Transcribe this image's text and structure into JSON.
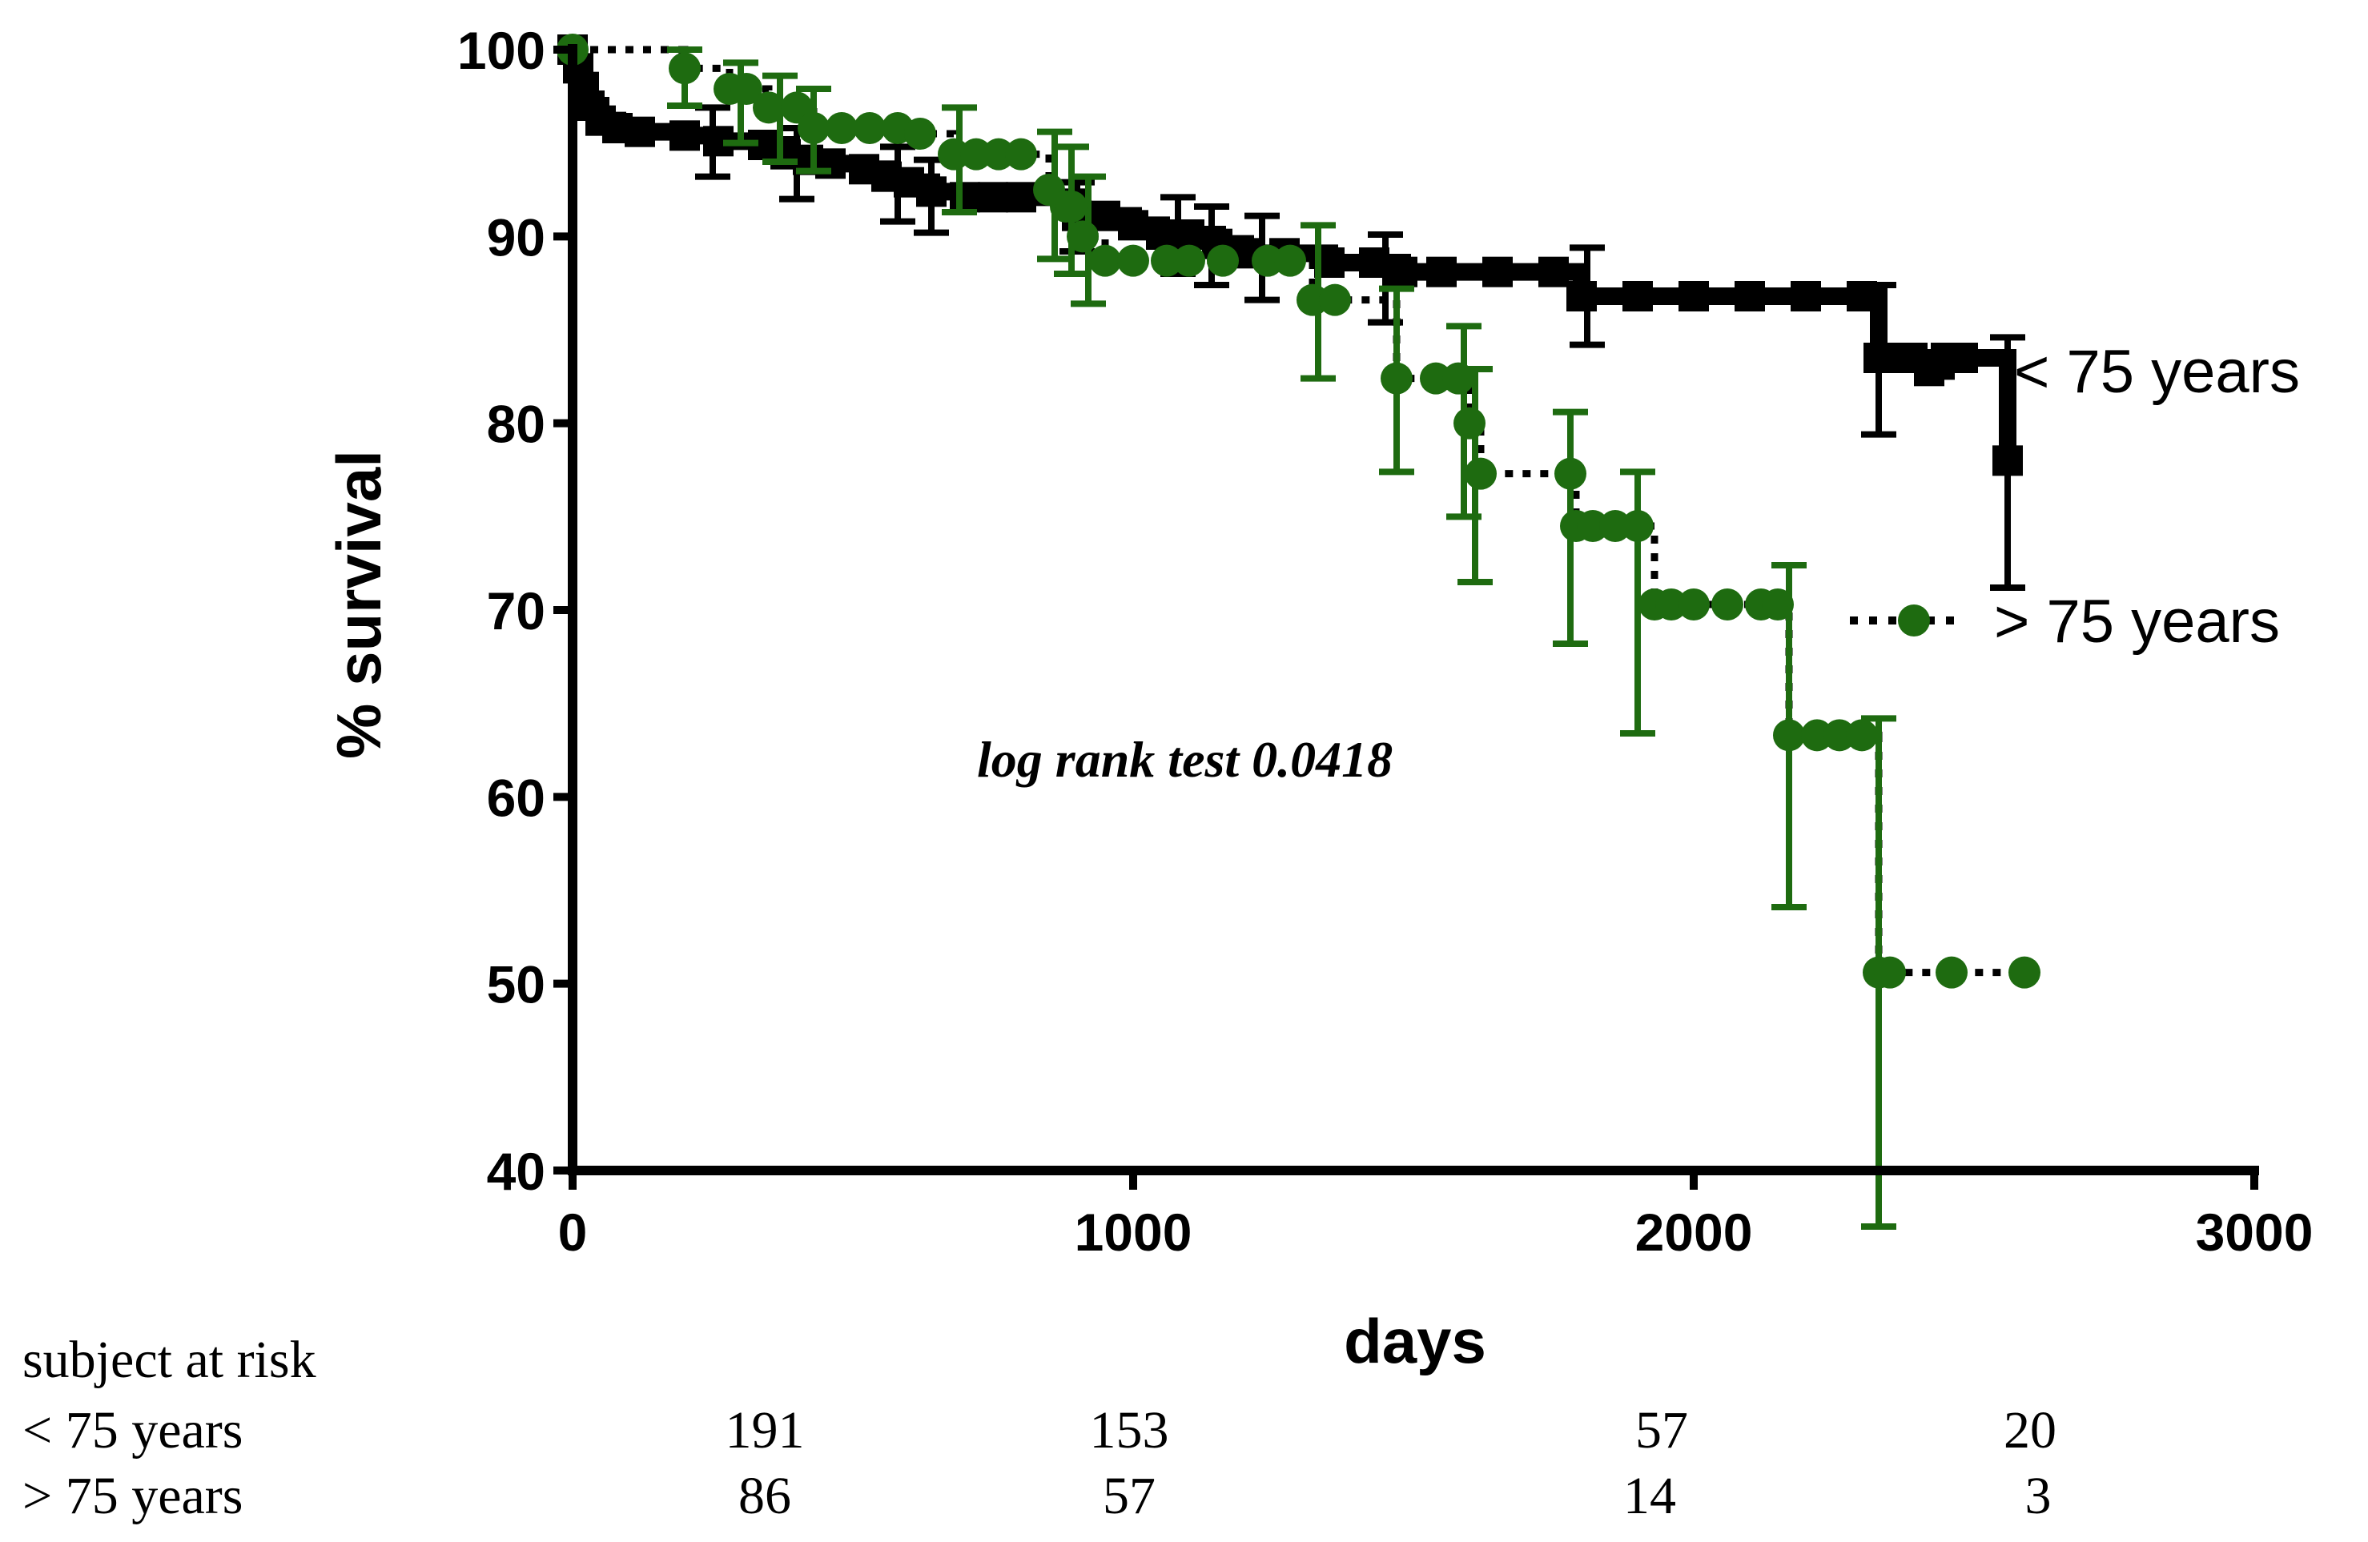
{
  "chart_data": {
    "type": "line",
    "subtype": "kaplan-meier",
    "title": "",
    "xlabel": "days",
    "ylabel": "% survival",
    "xlim": [
      0,
      3000
    ],
    "ylim": [
      40,
      100
    ],
    "x_ticks": [
      "0",
      "1000",
      "2000",
      "3000"
    ],
    "x_tick_values": [
      0,
      1000,
      2000,
      3000
    ],
    "y_ticks": [
      "40",
      "50",
      "60",
      "70",
      "80",
      "90",
      "100"
    ],
    "y_tick_values": [
      40,
      50,
      60,
      70,
      80,
      90,
      100
    ],
    "annotation": "log rank test 0.0418",
    "series": [
      {
        "name": "< 75 years",
        "label": "< 75 years",
        "color": "#000000",
        "marker": "square",
        "line_style": "solid",
        "x": [
          0,
          10,
          20,
          30,
          50,
          80,
          120,
          200,
          260,
          340,
          380,
          420,
          460,
          520,
          560,
          600,
          640,
          700,
          750,
          800,
          900,
          950,
          1000,
          1050,
          1100,
          1150,
          1200,
          1270,
          1350,
          1430,
          1480,
          1550,
          1650,
          1750,
          1800,
          1900,
          2000,
          2100,
          2200,
          2300,
          2330,
          2360,
          2390,
          2420,
          2450,
          2480,
          2560
        ],
        "y": [
          100,
          99,
          98,
          97,
          96.2,
          95.8,
          95.6,
          95.4,
          95.1,
          94.9,
          94.4,
          94.1,
          93.9,
          93.6,
          93.2,
          92.9,
          92.4,
          92.1,
          92.1,
          92.1,
          91.1,
          91.1,
          90.6,
          90.1,
          90.1,
          89.6,
          89.1,
          89.1,
          88.6,
          88.6,
          88.1,
          88.1,
          88.1,
          88.1,
          86.8,
          86.8,
          86.8,
          86.8,
          86.8,
          86.8,
          83.5,
          83.5,
          83.5,
          82.8,
          83.5,
          83.5,
          78.0
        ],
        "error_bars": [
          {
            "x": 250,
            "low": 93.2,
            "high": 96.9
          },
          {
            "x": 400,
            "low": 92.0,
            "high": 95.8
          },
          {
            "x": 580,
            "low": 90.8,
            "high": 94.8
          },
          {
            "x": 640,
            "low": 90.2,
            "high": 94.1
          },
          {
            "x": 900,
            "low": 89.2,
            "high": 92.9
          },
          {
            "x": 1080,
            "low": 88.0,
            "high": 92.1
          },
          {
            "x": 1140,
            "low": 87.4,
            "high": 91.6
          },
          {
            "x": 1230,
            "low": 86.6,
            "high": 91.1
          },
          {
            "x": 1450,
            "low": 85.4,
            "high": 90.1
          },
          {
            "x": 1810,
            "low": 84.2,
            "high": 89.4
          },
          {
            "x": 2330,
            "low": 79.4,
            "high": 87.4
          },
          {
            "x": 2560,
            "low": 71.2,
            "high": 84.6
          }
        ]
      },
      {
        "name": "> 75 years",
        "label": "> 75 years",
        "color": "#1e6b10",
        "marker": "circle",
        "line_style": "dotted",
        "x": [
          0,
          200,
          280,
          310,
          350,
          400,
          430,
          480,
          530,
          580,
          620,
          680,
          720,
          760,
          800,
          850,
          880,
          890,
          910,
          950,
          1000,
          1060,
          1100,
          1160,
          1240,
          1280,
          1320,
          1360,
          1470,
          1540,
          1580,
          1600,
          1620,
          1780,
          1790,
          1820,
          1860,
          1900,
          1930,
          1960,
          2000,
          2060,
          2120,
          2150,
          2170,
          2220,
          2260,
          2300,
          2330,
          2350,
          2460,
          2590
        ],
        "y": [
          100,
          99.0,
          97.9,
          97.9,
          96.9,
          96.9,
          95.8,
          95.8,
          95.8,
          95.8,
          95.5,
          94.4,
          94.4,
          94.4,
          94.4,
          92.5,
          91.6,
          91.6,
          90.0,
          88.7,
          88.7,
          88.7,
          88.7,
          88.7,
          88.7,
          88.7,
          86.6,
          86.6,
          82.4,
          82.4,
          82.4,
          80.0,
          77.3,
          77.3,
          74.5,
          74.5,
          74.5,
          74.5,
          70.3,
          70.3,
          70.3,
          70.3,
          70.3,
          70.3,
          63.3,
          63.3,
          63.3,
          63.3,
          50.6,
          50.6,
          50.6,
          50.6
        ],
        "error_bars": [
          {
            "x": 200,
            "low": 97.0,
            "high": 100
          },
          {
            "x": 300,
            "low": 95.0,
            "high": 99.3
          },
          {
            "x": 370,
            "low": 94.0,
            "high": 98.6
          },
          {
            "x": 430,
            "low": 93.5,
            "high": 97.9
          },
          {
            "x": 690,
            "low": 91.3,
            "high": 96.9
          },
          {
            "x": 860,
            "low": 88.8,
            "high": 95.6
          },
          {
            "x": 890,
            "low": 88.0,
            "high": 94.8
          },
          {
            "x": 920,
            "low": 86.4,
            "high": 93.2
          },
          {
            "x": 1330,
            "low": 82.4,
            "high": 90.6
          },
          {
            "x": 1470,
            "low": 77.4,
            "high": 87.2
          },
          {
            "x": 1590,
            "low": 75.0,
            "high": 85.2
          },
          {
            "x": 1610,
            "low": 71.5,
            "high": 82.9
          },
          {
            "x": 1780,
            "low": 68.2,
            "high": 80.6
          },
          {
            "x": 1900,
            "low": 63.4,
            "high": 77.4
          },
          {
            "x": 2170,
            "low": 54.1,
            "high": 72.4
          },
          {
            "x": 2330,
            "low": 37.0,
            "high": 64.2
          }
        ]
      }
    ]
  },
  "risk_table": {
    "title": "subject at risk",
    "rows": [
      {
        "label": "< 75 years",
        "values": [
          "191",
          "153",
          "57",
          "20"
        ]
      },
      {
        "label": "> 75 years",
        "values": [
          "86",
          "57",
          "14",
          "3"
        ]
      }
    ]
  }
}
